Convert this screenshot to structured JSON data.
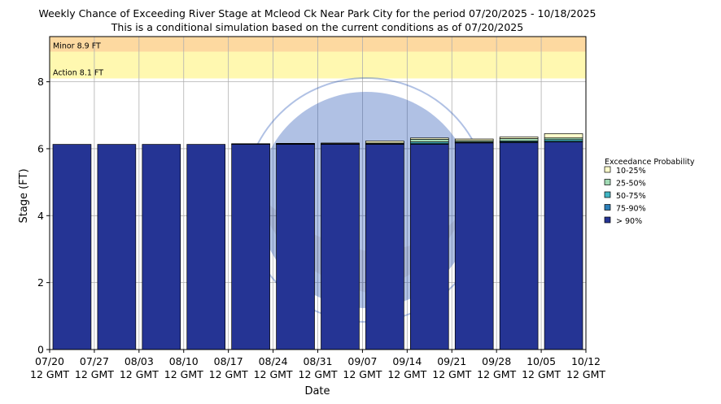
{
  "chart_data": {
    "type": "bar",
    "title": "Weekly Chance of Exceeding River Stage at Mcleod Ck Near Park City for the period 07/20/2025 - 10/18/2025",
    "subtitle": "This is a conditional simulation based on the current conditions as of 07/20/2025",
    "xlabel": "Date",
    "ylabel": "Stage (FT)",
    "ylim": [
      0,
      9.35
    ],
    "yticks": [
      0,
      2,
      4,
      6,
      8
    ],
    "grid": true,
    "legend_placement": "right",
    "legend_title": "Exceedance Probability",
    "xtick_labels": [
      {
        "date": "07/20",
        "time": "12 GMT"
      },
      {
        "date": "07/27",
        "time": "12 GMT"
      },
      {
        "date": "08/03",
        "time": "12 GMT"
      },
      {
        "date": "08/10",
        "time": "12 GMT"
      },
      {
        "date": "08/17",
        "time": "12 GMT"
      },
      {
        "date": "08/24",
        "time": "12 GMT"
      },
      {
        "date": "08/31",
        "time": "12 GMT"
      },
      {
        "date": "09/07",
        "time": "12 GMT"
      },
      {
        "date": "09/14",
        "time": "12 GMT"
      },
      {
        "date": "09/21",
        "time": "12 GMT"
      },
      {
        "date": "09/28",
        "time": "12 GMT"
      },
      {
        "date": "10/05",
        "time": "12 GMT"
      },
      {
        "date": "10/12",
        "time": "12 GMT"
      }
    ],
    "thresholds": [
      {
        "label": "Minor 8.9 FT",
        "value": 8.9,
        "color": "#fdd9a0"
      },
      {
        "label": "Action 8.1 FT",
        "value": 8.1,
        "color": "#fff8b0"
      }
    ],
    "series": [
      {
        "name": "> 90%",
        "color": "#253494",
        "values": [
          6.13,
          6.13,
          6.13,
          6.13,
          6.13,
          6.13,
          6.13,
          6.13,
          6.13,
          6.17,
          6.18,
          6.2
        ]
      },
      {
        "name": "75-90%",
        "color": "#2c7fb8",
        "values": [
          6.13,
          6.13,
          6.13,
          6.13,
          6.14,
          6.14,
          6.14,
          6.14,
          6.15,
          6.18,
          6.2,
          6.22
        ]
      },
      {
        "name": "50-75%",
        "color": "#41b6c4",
        "values": [
          6.13,
          6.13,
          6.13,
          6.13,
          6.14,
          6.14,
          6.14,
          6.15,
          6.2,
          6.2,
          6.23,
          6.27
        ]
      },
      {
        "name": "25-50%",
        "color": "#a1dab4",
        "values": [
          6.13,
          6.13,
          6.13,
          6.13,
          6.14,
          6.15,
          6.15,
          6.17,
          6.28,
          6.24,
          6.3,
          6.32
        ]
      },
      {
        "name": "10-25%",
        "color": "#ffffcc",
        "values": [
          6.13,
          6.13,
          6.13,
          6.13,
          6.15,
          6.16,
          6.17,
          6.23,
          6.32,
          6.29,
          6.35,
          6.45
        ]
      }
    ]
  }
}
